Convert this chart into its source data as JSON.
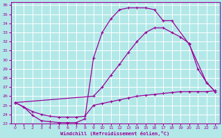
{
  "xlabel": "Windchill (Refroidissement éolien,°C)",
  "background_color": "#b3e8e8",
  "grid_color": "#ffffff",
  "line_color": "#990099",
  "xlim": [
    -0.5,
    23.5
  ],
  "ylim": [
    23,
    36.3
  ],
  "xticks": [
    0,
    1,
    2,
    3,
    4,
    5,
    6,
    7,
    8,
    9,
    10,
    11,
    12,
    13,
    14,
    15,
    16,
    17,
    18,
    19,
    20,
    21,
    22,
    23
  ],
  "yticks": [
    23,
    24,
    25,
    26,
    27,
    28,
    29,
    30,
    31,
    32,
    33,
    34,
    35,
    36
  ],
  "curve1_x": [
    0,
    1,
    2,
    3,
    4,
    5,
    6,
    7,
    8,
    9,
    10,
    11,
    12,
    13,
    14,
    15,
    16,
    17,
    18,
    20,
    22,
    23
  ],
  "curve1_y": [
    25.3,
    24.8,
    23.9,
    23.3,
    23.2,
    23.1,
    23.1,
    23.1,
    23.5,
    30.2,
    33.0,
    34.5,
    35.5,
    35.7,
    35.7,
    35.7,
    35.5,
    34.3,
    34.3,
    31.7,
    27.5,
    26.5
  ],
  "curve2_x": [
    0,
    9,
    10,
    11,
    12,
    13,
    14,
    15,
    16,
    17,
    18,
    19,
    20,
    21,
    22,
    23
  ],
  "curve2_y": [
    25.3,
    26.0,
    27.0,
    28.3,
    29.5,
    30.8,
    32.0,
    33.0,
    33.5,
    33.5,
    33.0,
    32.5,
    31.8,
    29.0,
    27.5,
    26.5
  ],
  "curve3_x": [
    0,
    1,
    2,
    3,
    4,
    5,
    6,
    7,
    8,
    9,
    10,
    11,
    12,
    13,
    14,
    15,
    16,
    17,
    18,
    19,
    20,
    21,
    22,
    23
  ],
  "curve3_y": [
    25.3,
    24.8,
    24.3,
    24.0,
    23.8,
    23.7,
    23.7,
    23.7,
    23.8,
    25.0,
    25.2,
    25.4,
    25.6,
    25.8,
    26.0,
    26.1,
    26.2,
    26.3,
    26.4,
    26.5,
    26.5,
    26.5,
    26.5,
    26.6
  ]
}
